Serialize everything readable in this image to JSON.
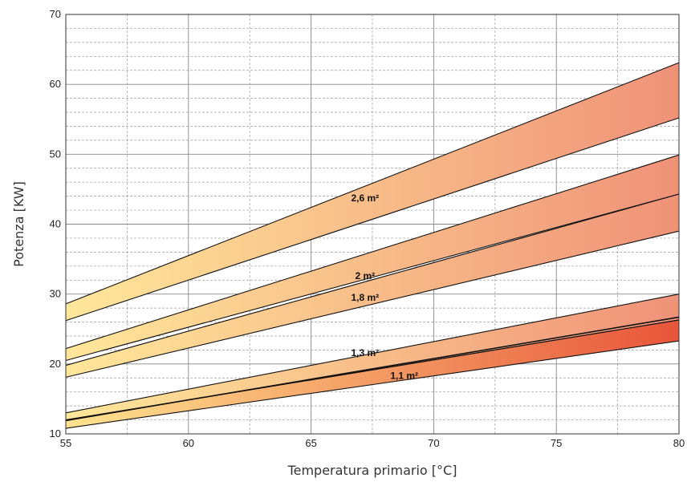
{
  "chart_data": {
    "type": "area",
    "title": "",
    "xlabel": "Temperatura primario [°C]",
    "ylabel": "Potenza [KW]",
    "xlim": [
      55,
      80
    ],
    "ylim": [
      10,
      70
    ],
    "x_ticks": [
      55,
      60,
      65,
      70,
      75,
      80
    ],
    "y_ticks": [
      10,
      20,
      30,
      40,
      50,
      60,
      70
    ],
    "grid": true,
    "legend": "none",
    "gradient": {
      "start": "#FFE79A",
      "end": "#F09278"
    },
    "series": [
      {
        "label": "1,1 m²",
        "x": [
          55,
          80
        ],
        "lower": [
          10.8,
          23.3
        ],
        "upper": [
          12.0,
          26.3
        ],
        "center": [
          11.9,
          26.7
        ]
      },
      {
        "label": "1,3 m²",
        "x": [
          55,
          80
        ],
        "lower": [
          12.0,
          26.3
        ],
        "upper": [
          13.0,
          30.0
        ]
      },
      {
        "label": "1,8 m²",
        "x": [
          55,
          80
        ],
        "lower": [
          18.1,
          39.0
        ],
        "upper": [
          19.8,
          44.3
        ]
      },
      {
        "label": "2 m²",
        "x": [
          55,
          80
        ],
        "lower": [
          20.5,
          44.3
        ],
        "upper": [
          22.2,
          49.9
        ]
      },
      {
        "label": "2,6 m²",
        "x": [
          55,
          80
        ],
        "lower": [
          26.2,
          55.2
        ],
        "upper": [
          28.6,
          63.1
        ]
      }
    ]
  }
}
